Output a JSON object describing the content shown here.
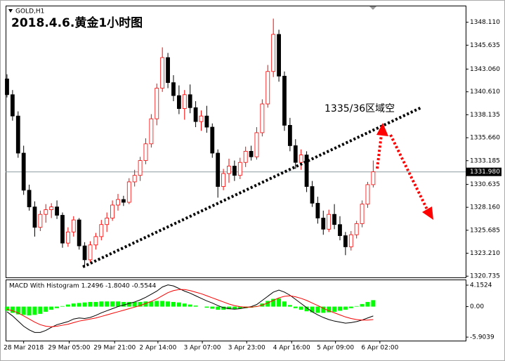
{
  "chart_data": {
    "type": "candlestick",
    "symbol": "GOLD,H1",
    "title": "2018.4.6.黄金1小时图",
    "annotation": "1335/36区域空",
    "up_color": "#ff0000",
    "down_color": "#000000",
    "candles": [
      [
        1342,
        1342.5,
        1340,
        1340.3
      ],
      [
        1340.3,
        1340.8,
        1337.5,
        1338
      ],
      [
        1338,
        1338.5,
        1333.5,
        1334
      ],
      [
        1334,
        1334.8,
        1329.5,
        1330
      ],
      [
        1330,
        1330.6,
        1327.8,
        1328.2
      ],
      [
        1328.2,
        1328.8,
        1325,
        1326
      ],
      [
        1326,
        1327.8,
        1325.6,
        1327.4
      ],
      [
        1327.4,
        1328.5,
        1326.5,
        1327.9
      ],
      [
        1327.9,
        1328.6,
        1327,
        1328.2
      ],
      [
        1328.2,
        1328.9,
        1326.9,
        1327.3
      ],
      [
        1327.3,
        1327.6,
        1323.8,
        1324.3
      ],
      [
        1324.3,
        1326,
        1323.9,
        1325.5
      ],
      [
        1325.5,
        1327.2,
        1325,
        1326.8
      ],
      [
        1326.8,
        1327,
        1323.6,
        1324
      ],
      [
        1324,
        1324.4,
        1321.8,
        1322.5
      ],
      [
        1322.5,
        1324.5,
        1322.2,
        1324.1
      ],
      [
        1324.1,
        1325.4,
        1323.6,
        1325
      ],
      [
        1325,
        1326.8,
        1324.6,
        1326.3
      ],
      [
        1326.3,
        1327.6,
        1325.5,
        1327
      ],
      [
        1327,
        1328.9,
        1326.7,
        1328.4
      ],
      [
        1328.4,
        1329.6,
        1327.8,
        1329
      ],
      [
        1329,
        1329.4,
        1328.3,
        1328.7
      ],
      [
        1328.7,
        1331.3,
        1328.5,
        1330.9
      ],
      [
        1330.9,
        1332.2,
        1330.4,
        1331.6
      ],
      [
        1331.6,
        1333.6,
        1331,
        1333.2
      ],
      [
        1333.2,
        1335.6,
        1332.8,
        1335
      ],
      [
        1335,
        1338.2,
        1334.6,
        1337.7
      ],
      [
        1337.7,
        1341.5,
        1337,
        1341
      ],
      [
        1341,
        1345.4,
        1340.6,
        1344.3
      ],
      [
        1344.3,
        1344.8,
        1341,
        1341.6
      ],
      [
        1341.6,
        1342.4,
        1339.6,
        1340.2
      ],
      [
        1340.2,
        1341.3,
        1338.2,
        1338.8
      ],
      [
        1338.8,
        1340.8,
        1337.6,
        1340.3
      ],
      [
        1340.3,
        1341.4,
        1338.3,
        1338.9
      ],
      [
        1338.9,
        1339.6,
        1336.8,
        1337.4
      ],
      [
        1337.4,
        1338.6,
        1336.4,
        1338
      ],
      [
        1338,
        1339.1,
        1336.2,
        1336.8
      ],
      [
        1336.8,
        1337.2,
        1333.5,
        1334
      ],
      [
        1334,
        1334.4,
        1329.2,
        1330.4
      ],
      [
        1330.4,
        1332.3,
        1330,
        1331.8
      ],
      [
        1331.8,
        1333.4,
        1330.8,
        1332.6
      ],
      [
        1332.6,
        1333.2,
        1331,
        1331.6
      ],
      [
        1331.6,
        1333.5,
        1331.2,
        1333
      ],
      [
        1333,
        1334.7,
        1332.5,
        1334.2
      ],
      [
        1334.2,
        1334.8,
        1333.2,
        1333.6
      ],
      [
        1333.6,
        1336.8,
        1333.3,
        1336.2
      ],
      [
        1336.2,
        1339.8,
        1335.8,
        1339.3
      ],
      [
        1339.3,
        1343.5,
        1338.9,
        1342.8
      ],
      [
        1342.8,
        1348.5,
        1342.2,
        1346.8
      ],
      [
        1346.8,
        1347.3,
        1341.7,
        1342.3
      ],
      [
        1342.3,
        1342.8,
        1336.4,
        1337
      ],
      [
        1337,
        1337.8,
        1334.2,
        1334.8
      ],
      [
        1334.8,
        1335.5,
        1332.3,
        1333
      ],
      [
        1333,
        1334.4,
        1332.2,
        1333.8
      ],
      [
        1333.8,
        1334.2,
        1329.8,
        1330.4
      ],
      [
        1330.4,
        1331,
        1328.2,
        1328.6
      ],
      [
        1328.6,
        1329.3,
        1326.4,
        1327
      ],
      [
        1327,
        1327.8,
        1325.2,
        1325.8
      ],
      [
        1325.8,
        1327.9,
        1325.5,
        1327.4
      ],
      [
        1327.4,
        1328.5,
        1325.8,
        1326.3
      ],
      [
        1326.3,
        1327.2,
        1324.6,
        1325.1
      ],
      [
        1325.1,
        1325.5,
        1323,
        1323.9
      ],
      [
        1323.9,
        1325.6,
        1323.5,
        1325.2
      ],
      [
        1325.2,
        1326.7,
        1324.8,
        1326.4
      ],
      [
        1326.4,
        1328.9,
        1326,
        1328.5
      ],
      [
        1328.5,
        1330.9,
        1328.1,
        1330.6
      ],
      [
        1330.6,
        1333.2,
        1330.3,
        1331.98
      ]
    ],
    "xlim": [
      -0.25,
      82.66
    ],
    "xticks": [
      {
        "value": 3,
        "label": "28 Mar 2018"
      },
      {
        "value": 11.2,
        "label": "29 Mar 05:00"
      },
      {
        "value": 19.4,
        "label": "29 Mar 21:00"
      },
      {
        "value": 27.2,
        "label": "2 Apr 14:00"
      },
      {
        "value": 35.2,
        "label": "3 Apr 07:00"
      },
      {
        "value": 43.2,
        "label": "3 Apr 23:00"
      },
      {
        "value": 51.3,
        "label": "4 Apr 16:00"
      },
      {
        "value": 59.2,
        "label": "5 Apr 09:00"
      },
      {
        "value": 67.2,
        "label": "6 Apr 02:00"
      }
    ],
    "ylim": [
      1320.6,
      1349.9
    ],
    "yticks": [
      {
        "value": 1348.11,
        "label": "1348.110"
      },
      {
        "value": 1345.635,
        "label": "1345.635"
      },
      {
        "value": 1343.06,
        "label": "1343.060"
      },
      {
        "value": 1340.61,
        "label": "1340.610"
      },
      {
        "value": 1338.135,
        "label": "1338.135"
      },
      {
        "value": 1335.66,
        "label": "1335.660"
      },
      {
        "value": 1333.185,
        "label": "1333.185"
      },
      {
        "value": 1330.635,
        "label": "1330.635"
      },
      {
        "value": 1328.16,
        "label": "1328.160"
      },
      {
        "value": 1325.685,
        "label": "1325.685"
      },
      {
        "value": 1323.21,
        "label": "1323.210"
      },
      {
        "value": 1320.735,
        "label": "1320.735"
      }
    ],
    "current_price": {
      "value": 1331.98,
      "label": "1331.980"
    },
    "macd": {
      "label": "MACD With Histogram 1.2496 -1.8040 -0.5544",
      "histogram_color": "#00ff00",
      "histogram": [
        -0.8,
        -1.2,
        -1.5,
        -1.6,
        -1.7,
        -1.6,
        -1.4,
        -1.0,
        -0.6,
        -0.3,
        0.1,
        0.4,
        0.6,
        0.7,
        0.8,
        0.9,
        0.9,
        1.0,
        1.0,
        1.0,
        1.0,
        0.9,
        0.9,
        0.9,
        0.9,
        1.0,
        1.0,
        1.1,
        1.1,
        1.0,
        0.9,
        0.8,
        0.6,
        0.4,
        0.2,
        0.0,
        -0.2,
        -0.4,
        -0.6,
        -0.6,
        -0.5,
        -0.5,
        -0.4,
        -0.3,
        -0.2,
        0.1,
        0.6,
        1.1,
        1.5,
        1.6,
        1.0,
        0.3,
        -0.3,
        -0.6,
        -0.9,
        -1.1,
        -1.2,
        -1.2,
        -1.1,
        -1.0,
        -0.8,
        -0.6,
        -0.3,
        0.1,
        0.5,
        0.9,
        1.2496
      ],
      "series": [
        {
          "color": "#000000",
          "values": [
            -1,
            -1.8,
            -2.8,
            -3.8,
            -4.5,
            -5,
            -5,
            -4.6,
            -4,
            -3.5,
            -3.2,
            -2.9,
            -2.4,
            -2.2,
            -2.3,
            -2.1,
            -1.7,
            -1.2,
            -0.8,
            -0.4,
            0,
            0.3,
            0.6,
            0.9,
            1.3,
            1.8,
            2.4,
            3,
            3.8,
            4.2,
            4,
            3.5,
            3,
            2.6,
            2.1,
            1.6,
            1.1,
            0.7,
            0.2,
            -0.2,
            -0.4,
            -0.5,
            -0.4,
            -0.2,
            0,
            0.4,
            1.2,
            2,
            2.8,
            3.2,
            2.8,
            2.2,
            1.4,
            0.6,
            -0.2,
            -1,
            -1.6,
            -2.1,
            -2.5,
            -2.8,
            -3,
            -3.2,
            -3.1,
            -2.9,
            -2.6,
            -2.2,
            -1.804
          ]
        },
        {
          "color": "#ff0000",
          "values": [
            -0.5,
            -0.8,
            -1.2,
            -1.8,
            -2.4,
            -3,
            -3.5,
            -3.8,
            -3.9,
            -3.8,
            -3.6,
            -3.4,
            -3.1,
            -2.8,
            -2.6,
            -2.4,
            -2.2,
            -1.9,
            -1.6,
            -1.3,
            -1,
            -0.7,
            -0.4,
            -0.1,
            0.2,
            0.6,
            1,
            1.5,
            2.1,
            2.7,
            3.1,
            3.3,
            3.3,
            3.1,
            2.8,
            2.5,
            2.1,
            1.7,
            1.3,
            0.9,
            0.5,
            0.2,
            0,
            -0.1,
            -0.1,
            0,
            0.3,
            0.7,
            1.2,
            1.7,
            2,
            2.1,
            1.9,
            1.6,
            1.2,
            0.7,
            0.2,
            -0.3,
            -0.8,
            -1.2,
            -1.6,
            -2,
            -2.3,
            -2.5,
            -2.6,
            -2.6,
            -2.5
          ]
        }
      ],
      "ylim": [
        -6.58,
        5.24
      ],
      "yticks": [
        {
          "value": 4.1524,
          "label": "4.1524"
        },
        {
          "value": 0,
          "label": "0.00"
        },
        {
          "value": -5.9039,
          "label": "-5.9039"
        }
      ]
    }
  }
}
